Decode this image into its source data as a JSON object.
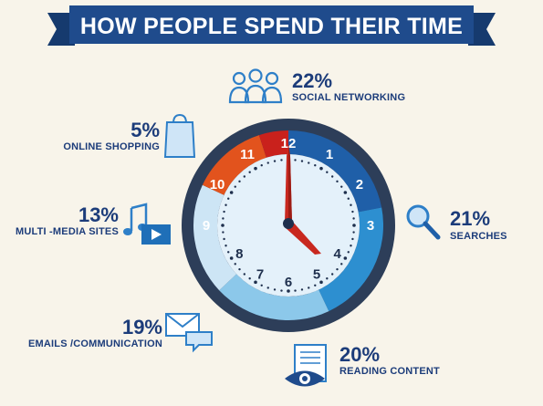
{
  "title": "HOW PEOPLE SPEND THEIR TIME",
  "colors": {
    "background": "#f8f4ea",
    "banner": "#1f4b8c",
    "banner_dark": "#163a6e",
    "text": "#1c3c7a",
    "bezel": "#2d3e59",
    "face": "#e4f1fa",
    "hand": "#c8281f"
  },
  "chart_data": {
    "type": "pie",
    "title": "HOW PEOPLE SPEND THEIR TIME",
    "categories": [
      "Social Networking",
      "Searches",
      "Reading Content",
      "Emails /Communication",
      "Multi -Media Sites",
      "Online Shopping"
    ],
    "values": [
      22,
      21,
      20,
      19,
      13,
      5
    ],
    "value_labels": [
      "22%",
      "21%",
      "20%",
      "19%",
      "13%",
      "5%"
    ],
    "labels": [
      "SOCIAL NETWORKING",
      "SEARCHES",
      "READING CONTENT",
      "EMAILS /COMMUNICATION",
      "MULTI -MEDIA SITES",
      "ONLINE SHOPPING"
    ],
    "segment_colors": [
      "#1f5fa8",
      "#2d8fd0",
      "#8cc8ea",
      "#cde5f5",
      "#e2531d",
      "#c9211c"
    ],
    "icons": [
      "people-icon",
      "magnifier-icon",
      "eye-document-icon",
      "envelope-icon",
      "music-video-icon",
      "shopping-bag-icon"
    ],
    "clock_hours": [
      "12",
      "1",
      "2",
      "3",
      "4",
      "5",
      "6",
      "7",
      "8",
      "9",
      "10",
      "11"
    ]
  }
}
